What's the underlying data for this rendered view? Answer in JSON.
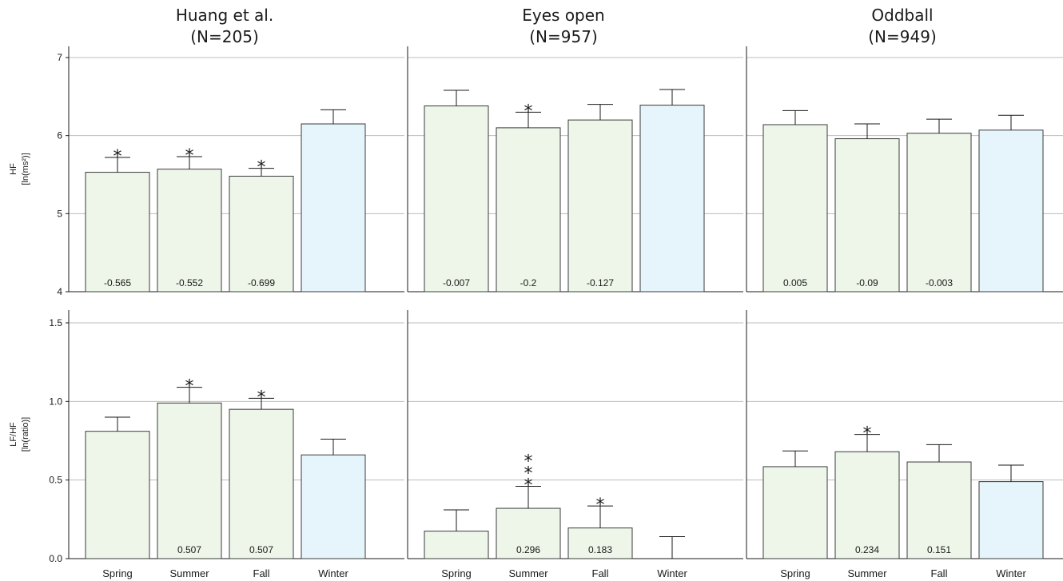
{
  "chart_data": [
    {
      "type": "bar",
      "title": "Huang et al.",
      "subtitle": "(N=205)",
      "ylabel": "HF",
      "ylabel_unit": "[ln(ms²)]",
      "categories": [
        "Spring",
        "Summer",
        "Fall",
        "Winter"
      ],
      "values": [
        5.53,
        5.57,
        5.48,
        6.15
      ],
      "errors": [
        0.19,
        0.16,
        0.1,
        0.18
      ],
      "value_labels": [
        "-0.565",
        "-0.552",
        "-0.699",
        ""
      ],
      "stars": [
        "*",
        "*",
        "*",
        ""
      ],
      "ylim": [
        4,
        7.2
      ],
      "yticks": [
        "4",
        "5",
        "6",
        "7"
      ],
      "grid": true,
      "colors": [
        "#eef6ea",
        "#eef6ea",
        "#eef6ea",
        "#e6f5fb"
      ]
    },
    {
      "type": "bar",
      "title": "Eyes open",
      "subtitle": "(N=957)",
      "ylabel": "",
      "ylabel_unit": "",
      "categories": [
        "Spring",
        "Summer",
        "Fall",
        "Winter"
      ],
      "values": [
        6.38,
        6.1,
        6.2,
        6.39
      ],
      "errors": [
        0.2,
        0.2,
        0.2,
        0.2
      ],
      "value_labels": [
        "-0.007",
        "-0.2",
        "-0.127",
        ""
      ],
      "stars": [
        "",
        "*",
        "",
        ""
      ],
      "ylim": [
        4,
        7.2
      ],
      "yticks": [],
      "grid": true,
      "colors": [
        "#eef6ea",
        "#eef6ea",
        "#eef6ea",
        "#e6f5fb"
      ]
    },
    {
      "type": "bar",
      "title": "Oddball",
      "subtitle": "(N=949)",
      "ylabel": "",
      "ylabel_unit": "",
      "categories": [
        "Spring",
        "Summer",
        "Fall",
        "Winter"
      ],
      "values": [
        6.14,
        5.96,
        6.03,
        6.07
      ],
      "errors": [
        0.18,
        0.19,
        0.18,
        0.19
      ],
      "value_labels": [
        "0.005",
        "-0.09",
        "-0.003",
        ""
      ],
      "stars": [
        "",
        "",
        "",
        ""
      ],
      "ylim": [
        4,
        7.2
      ],
      "yticks": [],
      "grid": true,
      "colors": [
        "#eef6ea",
        "#eef6ea",
        "#eef6ea",
        "#e6f5fb"
      ]
    },
    {
      "type": "bar",
      "title": "",
      "subtitle": "",
      "ylabel": "LF/HF",
      "ylabel_unit": "[ln(ratio)]",
      "categories": [
        "Spring",
        "Summer",
        "Fall",
        "Winter"
      ],
      "values": [
        0.81,
        0.99,
        0.95,
        0.66
      ],
      "errors": [
        0.09,
        0.1,
        0.07,
        0.1
      ],
      "value_labels": [
        "",
        "0.507",
        "0.507",
        ""
      ],
      "stars": [
        "",
        "*",
        "*",
        ""
      ],
      "ylim": [
        0,
        1.6
      ],
      "yticks": [
        "0.0",
        "0.5",
        "1.0",
        "1.5"
      ],
      "grid": true,
      "colors": [
        "#eef6ea",
        "#eef6ea",
        "#eef6ea",
        "#e6f5fb"
      ]
    },
    {
      "type": "bar",
      "title": "",
      "subtitle": "",
      "ylabel": "",
      "ylabel_unit": "",
      "categories": [
        "Spring",
        "Summer",
        "Fall",
        "Winter"
      ],
      "values": [
        0.175,
        0.32,
        0.195,
        0.0
      ],
      "errors": [
        0.135,
        0.14,
        0.14,
        0.14
      ],
      "value_labels": [
        "",
        "0.296",
        "0.183",
        ""
      ],
      "stars": [
        "",
        "***",
        "*",
        ""
      ],
      "ylim": [
        0,
        1.6
      ],
      "yticks": [],
      "grid": true,
      "colors": [
        "#eef6ea",
        "#eef6ea",
        "#eef6ea",
        "#e6f5fb"
      ]
    },
    {
      "type": "bar",
      "title": "",
      "subtitle": "",
      "ylabel": "",
      "ylabel_unit": "",
      "categories": [
        "Spring",
        "Summer",
        "Fall",
        "Winter"
      ],
      "values": [
        0.585,
        0.68,
        0.615,
        0.49
      ],
      "errors": [
        0.1,
        0.11,
        0.11,
        0.105
      ],
      "value_labels": [
        "",
        "0.234",
        "0.151",
        ""
      ],
      "stars": [
        "",
        "*",
        "",
        ""
      ],
      "ylim": [
        0,
        1.6
      ],
      "yticks": [],
      "grid": true,
      "colors": [
        "#eef6ea",
        "#eef6ea",
        "#eef6ea",
        "#e6f5fb"
      ]
    }
  ]
}
